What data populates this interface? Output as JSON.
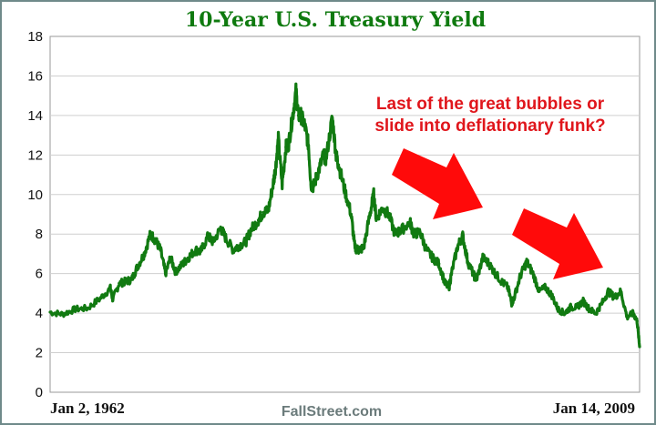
{
  "chart_data": {
    "type": "line",
    "title": "10-Year U.S. Treasury Yield",
    "xlabel": "",
    "ylabel": "",
    "x_start_label": "Jan 2, 1962",
    "x_end_label": "Jan 14, 2009",
    "ylim": [
      0,
      18
    ],
    "yticks": [
      "0",
      "2",
      "4",
      "6",
      "8",
      "10",
      "12",
      "14",
      "16",
      "18"
    ],
    "grid": true,
    "series": [
      {
        "x": [
          1962.0,
          1963.0,
          1964.0,
          1965.0,
          1966.0,
          1966.8,
          1967.0,
          1967.5,
          1968.0,
          1968.5,
          1969.0,
          1969.5,
          1970.0,
          1970.4,
          1970.8,
          1971.2,
          1971.6,
          1972.0,
          1972.6,
          1973.0,
          1973.6,
          1974.0,
          1974.6,
          1975.0,
          1975.6,
          1976.0,
          1976.6,
          1977.0,
          1977.6,
          1978.0,
          1978.6,
          1979.0,
          1979.4,
          1979.8,
          1980.0,
          1980.2,
          1980.5,
          1980.8,
          1981.0,
          1981.3,
          1981.6,
          1981.8,
          1982.0,
          1982.3,
          1982.6,
          1982.8,
          1983.0,
          1983.4,
          1983.8,
          1984.0,
          1984.5,
          1984.8,
          1985.0,
          1985.5,
          1986.0,
          1986.3,
          1986.6,
          1987.0,
          1987.5,
          1987.8,
          1988.0,
          1988.5,
          1989.0,
          1989.5,
          1990.0,
          1990.7,
          1991.0,
          1991.5,
          1992.0,
          1992.5,
          1993.0,
          1993.5,
          1993.8,
          1994.0,
          1994.5,
          1994.9,
          1995.3,
          1995.8,
          1996.0,
          1996.5,
          1997.0,
          1997.5,
          1998.0,
          1998.5,
          1998.8,
          1999.0,
          1999.5,
          2000.0,
          2000.5,
          2001.0,
          2001.5,
          2002.0,
          2002.5,
          2003.0,
          2003.5,
          2004.0,
          2004.5,
          2005.0,
          2005.5,
          2006.0,
          2006.5,
          2007.0,
          2007.5,
          2008.0,
          2008.5,
          2008.8,
          2009.0
        ],
        "y": [
          4.05,
          3.95,
          4.2,
          4.25,
          4.75,
          5.25,
          4.7,
          5.5,
          5.6,
          5.7,
          6.4,
          7.0,
          8.0,
          7.7,
          7.2,
          6.0,
          6.8,
          6.1,
          6.5,
          6.8,
          7.2,
          7.1,
          7.9,
          7.6,
          8.3,
          7.8,
          7.2,
          7.4,
          7.6,
          8.2,
          8.7,
          9.1,
          9.2,
          10.6,
          11.5,
          12.8,
          10.5,
          12.4,
          12.5,
          13.8,
          15.2,
          14.0,
          14.0,
          13.5,
          12.5,
          10.5,
          10.4,
          11.2,
          12.0,
          11.8,
          13.9,
          12.0,
          11.5,
          10.2,
          9.0,
          7.3,
          7.2,
          7.3,
          9.0,
          10.0,
          8.8,
          9.3,
          9.0,
          8.0,
          8.2,
          8.6,
          8.0,
          8.1,
          7.2,
          6.8,
          6.5,
          5.5,
          5.3,
          6.0,
          7.4,
          7.9,
          6.6,
          5.9,
          5.7,
          6.8,
          6.5,
          6.0,
          5.6,
          5.3,
          4.5,
          4.8,
          5.9,
          6.6,
          6.0,
          5.1,
          5.3,
          4.9,
          4.2,
          4.0,
          4.3,
          4.3,
          4.6,
          4.2,
          4.0,
          4.5,
          5.1,
          4.8,
          5.1,
          3.8,
          4.0,
          3.6,
          2.3
        ]
      }
    ],
    "colors": {
      "line": "#117a11",
      "title": "#0f7a0f",
      "source": "#6b7b7b",
      "annotation": "#e0161c",
      "arrow": "#ff0a0a",
      "grid": "#cfcfcf",
      "frame": "#6f8a8a"
    }
  },
  "source": "FallStreet.com",
  "annotation": {
    "line1": "Last of the great bubbles or",
    "line2": "slide into deflationary funk?"
  },
  "decorations": {
    "arrows": [
      "right-down-arrow-icon",
      "right-down-arrow-icon"
    ]
  }
}
